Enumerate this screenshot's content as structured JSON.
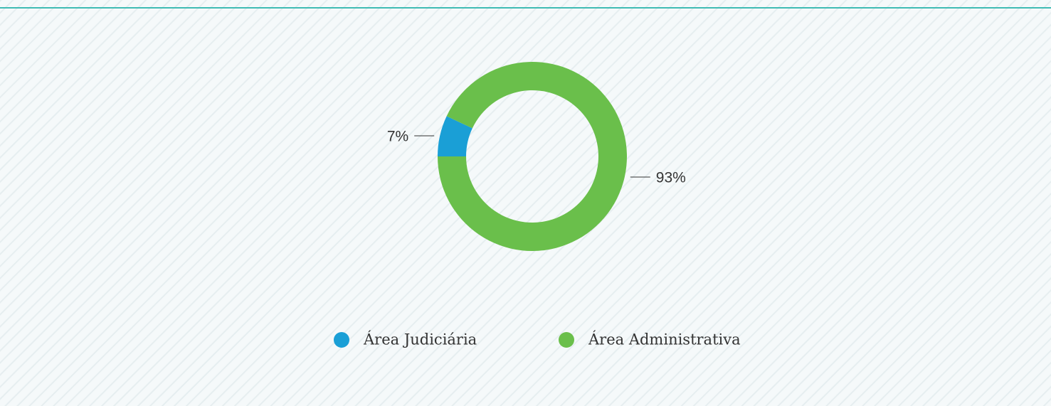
{
  "chart_data": {
    "type": "donut",
    "categories": [
      "Área Judiciária",
      "Área Administrativa"
    ],
    "values": [
      7,
      93
    ],
    "value_labels": [
      "7%",
      "93%"
    ],
    "colors": [
      "#1a9fd6",
      "#6abf4b"
    ],
    "legend": "bottom"
  }
}
